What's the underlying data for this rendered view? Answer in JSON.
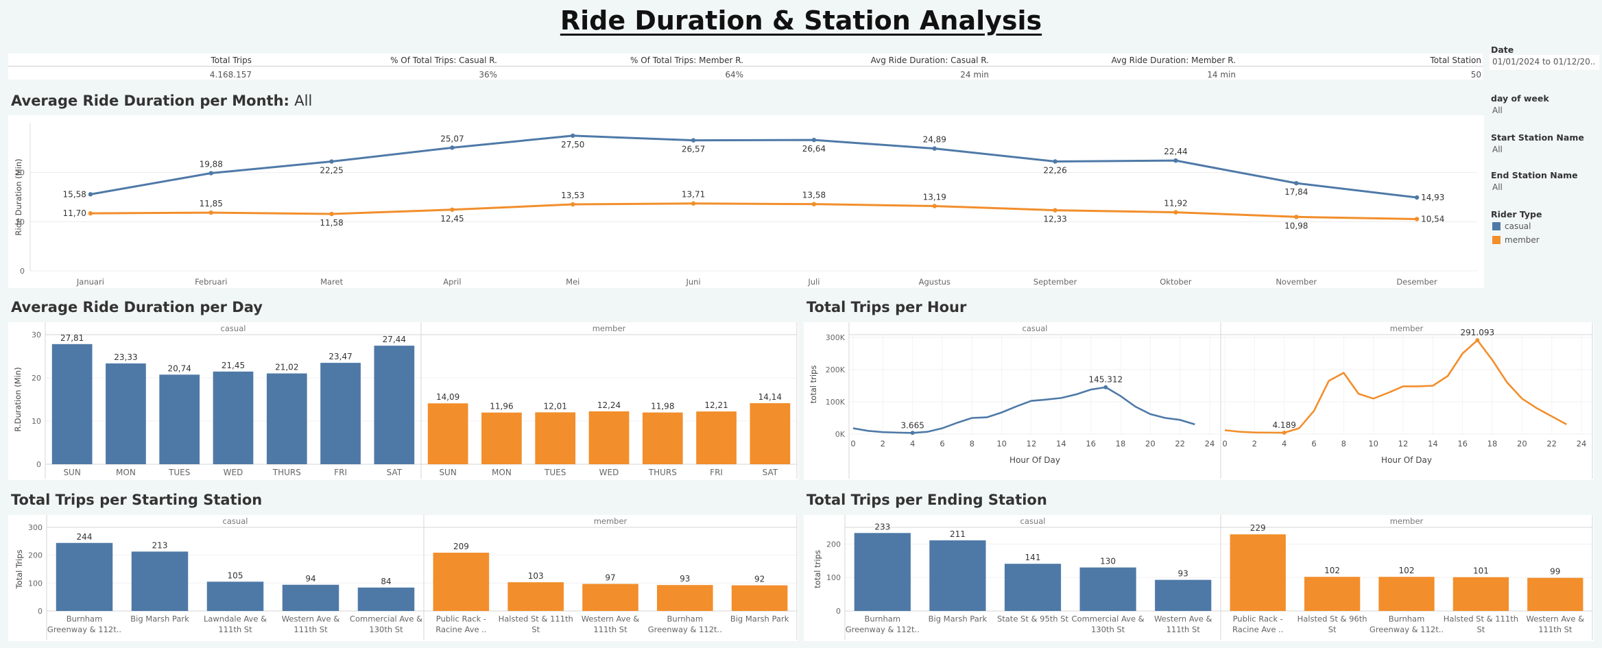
{
  "page": {
    "title": "Ride Duration & Station Analysis"
  },
  "kpis": [
    {
      "label": "Total Trips",
      "value": "4.168.157"
    },
    {
      "label": "% Of Total Trips: Casual R.",
      "value": "36%"
    },
    {
      "label": "% Of Total Trips: Member R.",
      "value": "64%"
    },
    {
      "label": "Avg Ride Duration: Casual R.",
      "value": "24 min"
    },
    {
      "label": "Avg Ride Duration: Member R.",
      "value": "14 min"
    },
    {
      "label": "Total Station",
      "value": "50"
    }
  ],
  "filters": {
    "date_label": "Date",
    "date_value": "01/01/2024 to 01/12/20..",
    "day_label": "day of week",
    "day_value": "All",
    "start_label": "Start Station Name",
    "start_value": "All",
    "end_label": "End Station Name",
    "end_value": "All",
    "rider_label": "Rider Type",
    "rider_items": [
      "casual",
      "member"
    ]
  },
  "colors": {
    "casual": "#4e79a7",
    "member": "#f28e2b"
  },
  "sections": {
    "monthly_title": "Average Ride Duration per Month:",
    "monthly_sub": "All",
    "daily_title": "Average Ride Duration per Day",
    "hourly_title": "Total Trips per Hour",
    "start_title": "Total Trips per Starting Station",
    "end_title": "Total Trips per Ending Station"
  },
  "chart_data": [
    {
      "id": "monthly",
      "type": "line",
      "title": "Average Ride Duration per Month: All",
      "ylabel": "Ride Duration (Min)",
      "xlabel": "",
      "ylim": [
        0,
        30
      ],
      "yticks": [
        0,
        10,
        20
      ],
      "categories": [
        "Januari",
        "Februari",
        "Maret",
        "April",
        "Mei",
        "Juni",
        "Juli",
        "Agustus",
        "September",
        "Oktober",
        "November",
        "Desember"
      ],
      "series": [
        {
          "name": "casual",
          "values": [
            15.58,
            19.88,
            22.25,
            25.07,
            27.5,
            26.57,
            26.64,
            24.89,
            22.26,
            22.44,
            17.84,
            14.93
          ],
          "labels": [
            "15,58",
            "19,88",
            "22,25",
            "25,07",
            "27,50",
            "26,57",
            "26,64",
            "24,89",
            "22,26",
            "22,44",
            "17,84",
            "14,93"
          ]
        },
        {
          "name": "member",
          "values": [
            11.7,
            11.85,
            11.58,
            12.45,
            13.53,
            13.71,
            13.58,
            13.19,
            12.33,
            11.92,
            10.98,
            10.54
          ],
          "labels": [
            "11,70",
            "11,85",
            "11,58",
            "12,45",
            "13,53",
            "13,71",
            "13,58",
            "13,19",
            "12,33",
            "11,92",
            "10,98",
            "10,54"
          ]
        }
      ]
    },
    {
      "id": "daily",
      "type": "bar",
      "title": "Average Ride Duration per Day",
      "ylabel": "R.Duration (Min)",
      "ylim": [
        0,
        30
      ],
      "yticks": [
        0,
        10,
        20,
        30
      ],
      "categories": [
        "SUN",
        "MON",
        "TUES",
        "WED",
        "THURS",
        "FRI",
        "SAT"
      ],
      "series": [
        {
          "name": "casual",
          "values": [
            27.81,
            23.33,
            20.74,
            21.45,
            21.02,
            23.47,
            27.44
          ],
          "labels": [
            "27,81",
            "23,33",
            "20,74",
            "21,45",
            "21,02",
            "23,47",
            "27,44"
          ]
        },
        {
          "name": "member",
          "values": [
            14.09,
            11.96,
            12.01,
            12.24,
            11.98,
            12.21,
            14.14
          ],
          "labels": [
            "14,09",
            "11,96",
            "12,01",
            "12,24",
            "11,98",
            "12,21",
            "14,14"
          ]
        }
      ]
    },
    {
      "id": "hourly",
      "type": "line",
      "title": "Total Trips per Hour",
      "ylabel": "total trips",
      "xlabel": "Hour Of Day",
      "ylim": [
        0,
        300000
      ],
      "yticks": [
        0,
        100000,
        200000,
        300000
      ],
      "ytick_labels": [
        "0K",
        "100K",
        "200K",
        "300K"
      ],
      "xticks": [
        0,
        2,
        4,
        6,
        8,
        10,
        12,
        14,
        16,
        18,
        20,
        22,
        24
      ],
      "series": [
        {
          "name": "casual",
          "x": [
            0,
            1,
            2,
            3,
            4,
            5,
            6,
            7,
            8,
            9,
            10,
            11,
            12,
            13,
            14,
            15,
            16,
            17,
            18,
            19,
            20,
            21,
            22,
            23
          ],
          "values": [
            18000,
            10000,
            6000,
            4500,
            3665,
            7000,
            18000,
            35000,
            50000,
            52000,
            67000,
            86000,
            103000,
            107000,
            112000,
            123000,
            138000,
            145312,
            118000,
            85000,
            62000,
            50000,
            44000,
            30000
          ],
          "labels": {
            "4": "3.665",
            "17": "145.312"
          }
        },
        {
          "name": "member",
          "x": [
            0,
            1,
            2,
            3,
            4,
            5,
            6,
            7,
            8,
            9,
            10,
            11,
            12,
            13,
            14,
            15,
            16,
            17,
            18,
            19,
            20,
            21,
            22,
            23
          ],
          "values": [
            12000,
            7000,
            5000,
            4500,
            4189,
            18000,
            72000,
            165000,
            190000,
            125000,
            110000,
            128000,
            148000,
            148000,
            150000,
            180000,
            250000,
            291093,
            230000,
            160000,
            110000,
            80000,
            55000,
            30000
          ],
          "labels": {
            "4": "4.189",
            "17": "291.093"
          }
        }
      ]
    },
    {
      "id": "start_station",
      "type": "bar",
      "title": "Total Trips per Starting Station",
      "ylabel": "Total Trips",
      "ylim": [
        0,
        300
      ],
      "yticks": [
        0,
        100,
        200,
        300
      ],
      "series": [
        {
          "name": "casual",
          "categories": [
            "Burnham|Greenway & 112t..",
            "Big Marsh Park",
            "Lawndale Ave &|111th St",
            "Western Ave &|111th St",
            "Commercial Ave &|130th St"
          ],
          "values": [
            244,
            213,
            105,
            94,
            84
          ]
        },
        {
          "name": "member",
          "categories": [
            "Public Rack -|Racine Ave ..",
            "Halsted St & 111th|St",
            "Western Ave &|111th St",
            "Burnham|Greenway & 112t..",
            "Big Marsh Park"
          ],
          "values": [
            209,
            103,
            97,
            93,
            92
          ]
        }
      ]
    },
    {
      "id": "end_station",
      "type": "bar",
      "title": "Total Trips per Ending Station",
      "ylabel": "total trips",
      "ylim": [
        0,
        250
      ],
      "yticks": [
        0,
        100,
        200
      ],
      "series": [
        {
          "name": "casual",
          "categories": [
            "Burnham|Greenway & 112t..",
            "Big Marsh Park",
            "State St & 95th St",
            "Commercial Ave &|130th St",
            "Western Ave &|111th St"
          ],
          "values": [
            233,
            211,
            141,
            130,
            93
          ]
        },
        {
          "name": "member",
          "categories": [
            "Public Rack -|Racine Ave ..",
            "Halsted St & 96th|St",
            "Burnham|Greenway & 112t..",
            "Halsted St & 111th|St",
            "Western Ave &|111th St"
          ],
          "values": [
            229,
            102,
            102,
            101,
            99
          ]
        }
      ]
    }
  ]
}
